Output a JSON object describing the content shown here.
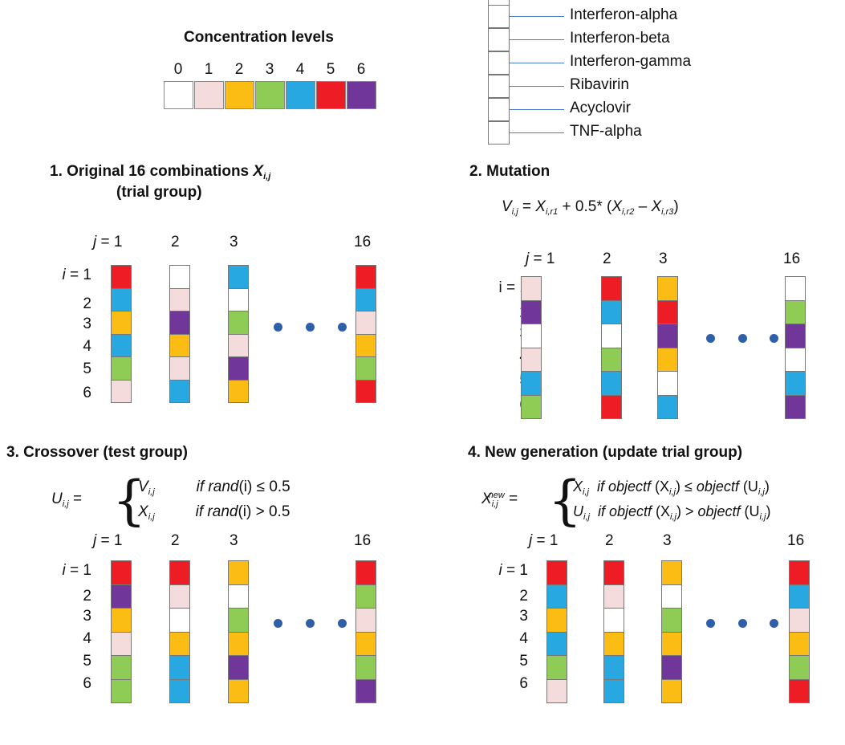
{
  "legend": {
    "title": "Concentration levels",
    "levels": [
      "0",
      "1",
      "2",
      "3",
      "4",
      "5",
      "6"
    ],
    "colors": [
      "#ffffff",
      "#f5dcdc",
      "#fbbc14",
      "#8fcc55",
      "#27a8e0",
      "#ee1c25",
      "#71369a"
    ]
  },
  "drugs": [
    "Interferon-alpha",
    "Interferon-beta",
    "Interferon-gamma",
    "Ribavirin",
    "Acyclovir",
    "TNF-alpha"
  ],
  "panels": [
    {
      "title_line1": "1. Original 16 combinations ",
      "title_var": "X",
      "title_sub": "i,j",
      "title_line2": "(trial group)",
      "col_labels": [
        "1",
        "2",
        "3",
        "16"
      ],
      "col_prefix_j": "j",
      "col_prefix_eq": " = ",
      "row_prefix_i": "i",
      "row_prefix_eq": " = ",
      "row_labels": [
        "1",
        "2",
        "3",
        "4",
        "5",
        "6"
      ],
      "columns": [
        [
          5,
          4,
          2,
          4,
          3,
          1
        ],
        [
          0,
          1,
          6,
          2,
          1,
          4
        ],
        [
          4,
          0,
          3,
          1,
          6,
          2
        ],
        [
          5,
          4,
          1,
          2,
          3,
          5
        ]
      ]
    },
    {
      "title_line1": "2. Mutation",
      "formula": {
        "lhs": "V",
        "lhs_sub": "i,j",
        "eq": " = ",
        "x1": "X",
        "x1_sub": "i,r1",
        "plus": " + 0.5* (",
        "x2": "X",
        "x2_sub": "i,r2",
        "minus": " – ",
        "x3": "X",
        "x3_sub": "i,r3",
        "close": ")"
      },
      "col_labels": [
        "1",
        "2",
        "3",
        "16"
      ],
      "col_prefix_j": "j",
      "col_prefix_eq": " = ",
      "row_prefix_i": "i = ",
      "row_labels": [
        "1",
        "2",
        "3",
        "4",
        "5",
        "6"
      ],
      "columns": [
        [
          1,
          6,
          0,
          1,
          4,
          3
        ],
        [
          5,
          4,
          0,
          3,
          4,
          5
        ],
        [
          2,
          5,
          6,
          2,
          0,
          4
        ],
        [
          0,
          3,
          6,
          0,
          4,
          6
        ]
      ]
    },
    {
      "title_line1": "3. Crossover (test group)",
      "formula": {
        "lhs": "U",
        "lhs_sub": "i,j",
        "eq": " = ",
        "c1_var": "V",
        "c1_sub": "i,j",
        "c1_cond_a": "if rand",
        "c1_cond_b": "(i) ≤ 0.5",
        "c2_var": "X",
        "c2_sub": "i,j",
        "c2_cond_a": "if rand",
        "c2_cond_b": "(i) > 0.5"
      },
      "col_labels": [
        "1",
        "2",
        "3",
        "16"
      ],
      "col_prefix_j": "j",
      "col_prefix_eq": " = ",
      "row_prefix_i": "i",
      "row_prefix_eq": " = ",
      "row_labels": [
        "1",
        "2",
        "3",
        "4",
        "5",
        "6"
      ],
      "columns": [
        [
          5,
          6,
          2,
          1,
          3,
          3
        ],
        [
          5,
          1,
          0,
          2,
          4,
          4
        ],
        [
          2,
          0,
          3,
          2,
          6,
          2
        ],
        [
          5,
          3,
          1,
          2,
          3,
          6
        ]
      ]
    },
    {
      "title_line1": "4. New generation  (update trial group)",
      "formula": {
        "lhs": "X",
        "lhs_sub": "i,j",
        "lhs_sup": "new",
        "eq": " = ",
        "c1_var": "X",
        "c1_sub": "i,j",
        "c1_cond": "if objectf",
        "c1_arg": " (X",
        "c1_arg_sub": "i,j",
        "c1_rel": ") ≤ ",
        "c1_cond2": "objectf",
        "c1_arg2": " (U",
        "c1_arg2_sub": "i,j",
        "c1_close": ")",
        "c2_var": "U",
        "c2_sub": "i,j",
        "c2_cond": "if objectf",
        "c2_arg": " (X",
        "c2_arg_sub": "i,j",
        "c2_rel": ") > ",
        "c2_cond2": "objectf",
        "c2_arg2": " (U",
        "c2_arg2_sub": "i,j",
        "c2_close": ")"
      },
      "col_labels": [
        "1",
        "2",
        "3",
        "16"
      ],
      "col_prefix_j": "j",
      "col_prefix_eq": " = ",
      "row_prefix_i": "i",
      "row_prefix_eq": " = ",
      "row_labels": [
        "1",
        "2",
        "3",
        "4",
        "5",
        "6"
      ],
      "columns": [
        [
          5,
          4,
          2,
          4,
          3,
          1
        ],
        [
          5,
          1,
          0,
          2,
          4,
          4
        ],
        [
          2,
          0,
          3,
          2,
          6,
          2
        ],
        [
          5,
          4,
          1,
          2,
          3,
          5
        ]
      ]
    }
  ]
}
